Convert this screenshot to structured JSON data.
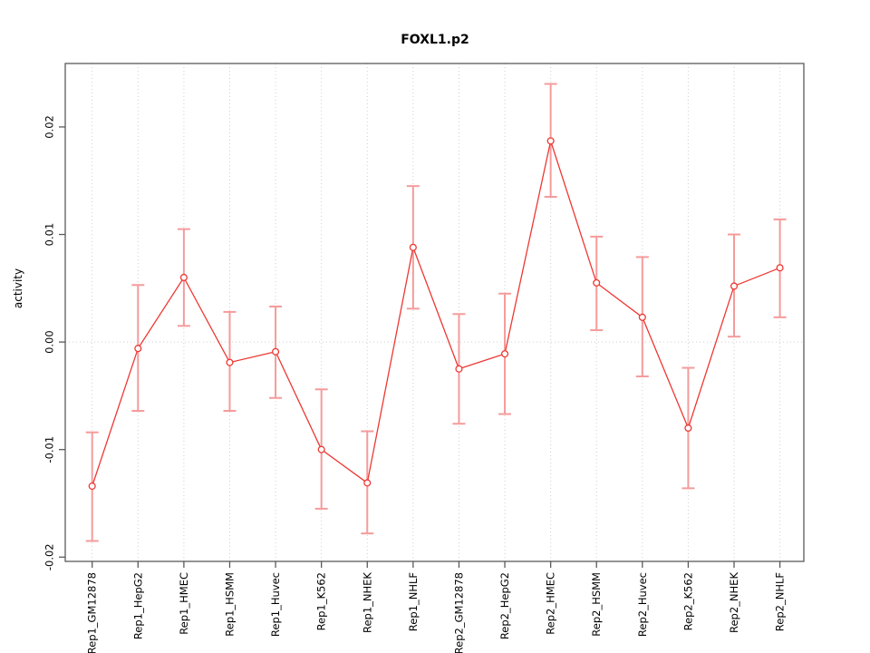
{
  "chart_data": {
    "type": "line",
    "title": "FOXL1.p2",
    "xlabel": "",
    "ylabel": "activity",
    "categories": [
      "Rep1_GM12878",
      "Rep1_HepG2",
      "Rep1_HMEC",
      "Rep1_HSMM",
      "Rep1_Huvec",
      "Rep1_K562",
      "Rep1_NHEK",
      "Rep1_NHLF",
      "Rep2_GM12878",
      "Rep2_HepG2",
      "Rep2_HMEC",
      "Rep2_HSMM",
      "Rep2_Huvec",
      "Rep2_K562",
      "Rep2_NHEK",
      "Rep2_NHLF"
    ],
    "series": [
      {
        "name": "activity",
        "values": [
          -0.0134,
          -0.0006,
          0.006,
          -0.0019,
          -0.0009,
          -0.01,
          -0.0131,
          0.0088,
          -0.0025,
          -0.0011,
          0.0187,
          0.0055,
          0.0023,
          -0.008,
          0.0052,
          0.0069
        ],
        "upper": [
          -0.0084,
          0.0053,
          0.0105,
          0.0028,
          0.0033,
          -0.0044,
          -0.0083,
          0.0145,
          0.0026,
          0.0045,
          0.024,
          0.0098,
          0.0079,
          -0.0024,
          0.01,
          0.0114
        ],
        "lower": [
          -0.0185,
          -0.0064,
          0.0015,
          -0.0064,
          -0.0052,
          -0.0155,
          -0.0178,
          0.0031,
          -0.0076,
          -0.0067,
          0.0135,
          0.0011,
          -0.0032,
          -0.0136,
          0.0005,
          0.0023
        ]
      }
    ],
    "yticks": [
      -0.02,
      -0.01,
      0.0,
      0.01,
      0.02
    ],
    "ytick_labels": [
      "-0.02",
      "-0.01",
      "0.00",
      "0.01",
      "0.02"
    ],
    "ylim": [
      -0.0204,
      0.0259
    ],
    "legend": "none",
    "grid": {
      "vertical_dotted_per_category": true,
      "horizontal_zero_dotted": true
    },
    "colors": {
      "line": "#ed3833",
      "point": "#ed3833",
      "error_bar": "#f59b9b",
      "grid": "#cfcfcf",
      "frame": "#5a5a5a",
      "text": "#000000"
    }
  }
}
